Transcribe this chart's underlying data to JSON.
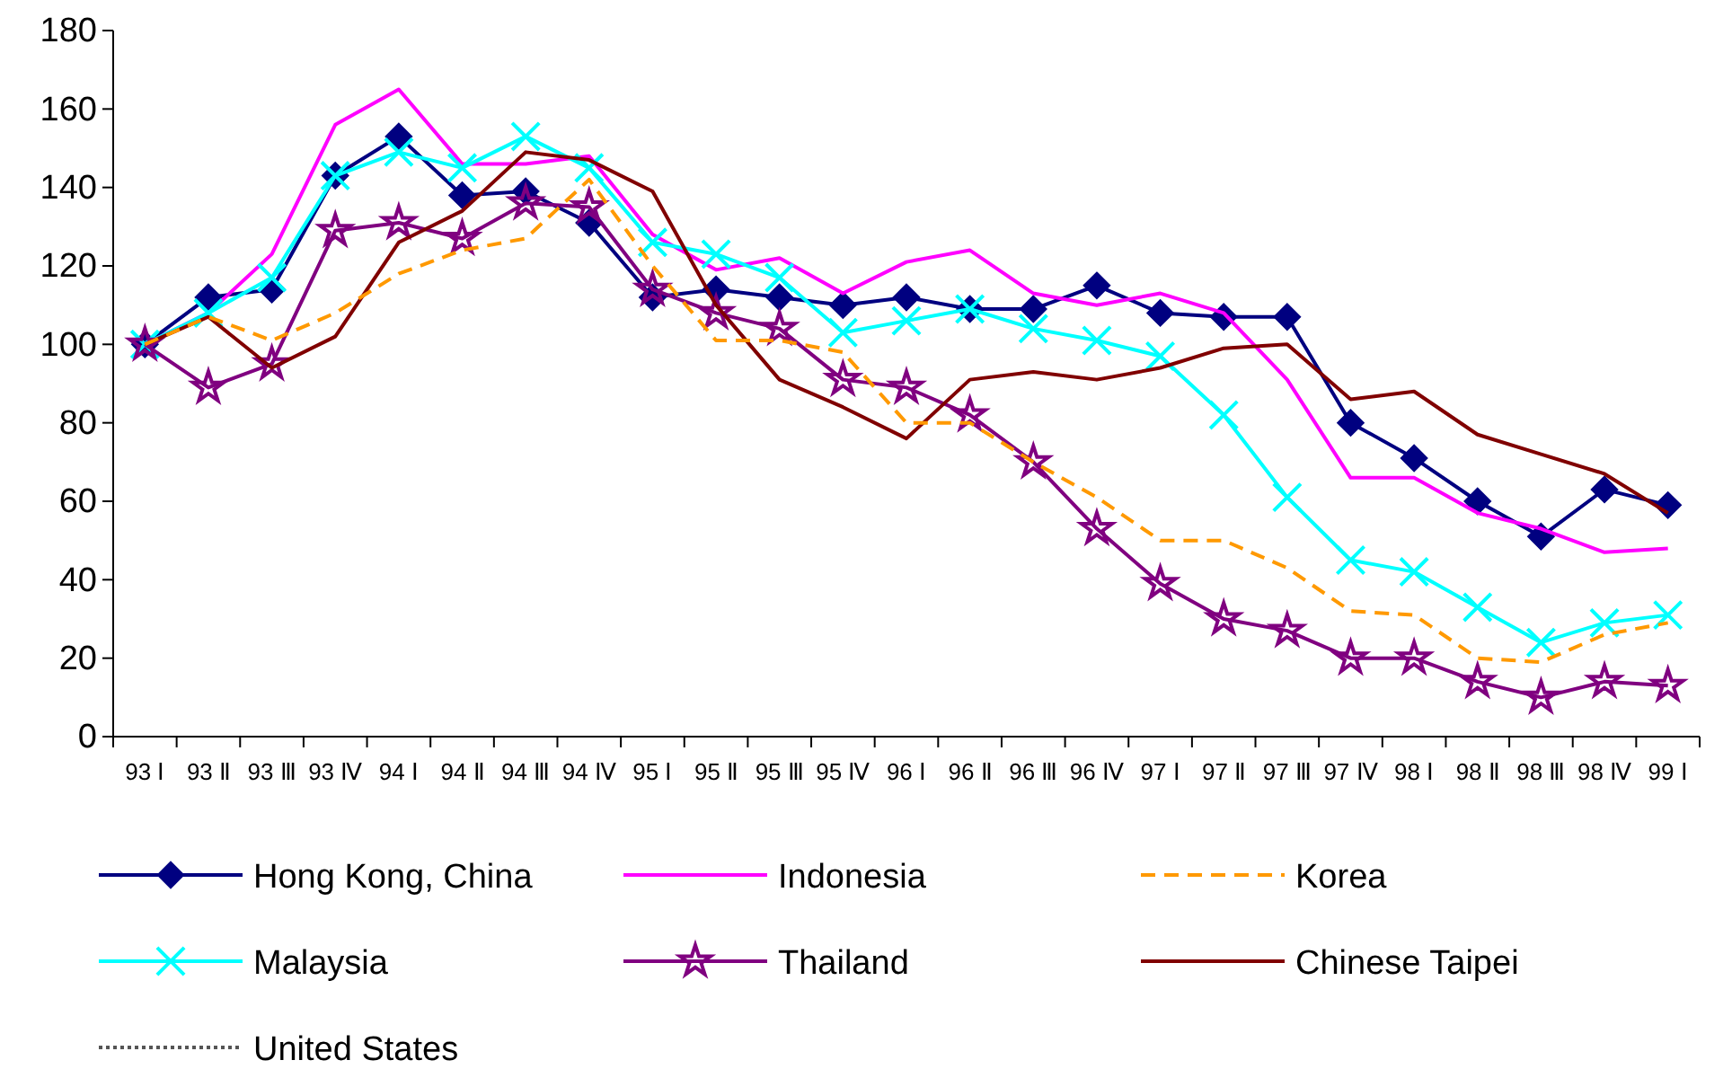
{
  "chart_data": {
    "type": "line",
    "categories": [
      "93 Ⅰ",
      "93 Ⅱ",
      "93 Ⅲ",
      "93 Ⅳ",
      "94 Ⅰ",
      "94 Ⅱ",
      "94 Ⅲ",
      "94 Ⅳ",
      "95 Ⅰ",
      "95 Ⅱ",
      "95 Ⅲ",
      "95 Ⅳ",
      "96 Ⅰ",
      "96 Ⅱ",
      "96 Ⅲ",
      "96 Ⅳ",
      "97 Ⅰ",
      "97 Ⅱ",
      "97 Ⅲ",
      "97 Ⅳ",
      "98 Ⅰ",
      "98 Ⅱ",
      "98 Ⅲ",
      "98 Ⅳ",
      "99 Ⅰ"
    ],
    "series": [
      {
        "name": "Hong Kong, China",
        "color": "#000080",
        "marker": "diamond",
        "line_style": "solid",
        "values": [
          100,
          112,
          114,
          143,
          153,
          138,
          139,
          131,
          112,
          114,
          112,
          110,
          112,
          109,
          109,
          115,
          108,
          107,
          107,
          80,
          71,
          60,
          51,
          63,
          59
        ]
      },
      {
        "name": "Indonesia",
        "color": "#ff00ff",
        "marker": "none",
        "line_style": "solid",
        "values": [
          100,
          108,
          123,
          156,
          165,
          146,
          146,
          148,
          128,
          119,
          122,
          113,
          121,
          124,
          113,
          110,
          113,
          108,
          91,
          66,
          66,
          57,
          53,
          47,
          48
        ]
      },
      {
        "name": "Korea",
        "color": "#ff9900",
        "marker": "none",
        "line_style": "dashed",
        "values": [
          100,
          107,
          101,
          108,
          118,
          124,
          127,
          142,
          120,
          101,
          101,
          98,
          80,
          80,
          70,
          61,
          50,
          50,
          43,
          32,
          31,
          20,
          19,
          26,
          29
        ]
      },
      {
        "name": "Malaysia",
        "color": "#00ffff",
        "marker": "cross",
        "line_style": "solid",
        "values": [
          100,
          108,
          117,
          143,
          149,
          145,
          153,
          145,
          126,
          123,
          117,
          103,
          106,
          109,
          104,
          101,
          97,
          82,
          61,
          45,
          42,
          33,
          24,
          29,
          31
        ]
      },
      {
        "name": "Thailand",
        "color": "#800080",
        "marker": "star",
        "line_style": "solid",
        "values": [
          100,
          89,
          95,
          129,
          131,
          127,
          136,
          135,
          114,
          108,
          104,
          91,
          89,
          82,
          70,
          53,
          39,
          30,
          27,
          20,
          20,
          14,
          10,
          14,
          13
        ]
      },
      {
        "name": "Chinese Taipei",
        "color": "#800000",
        "marker": "none",
        "line_style": "solid",
        "values": [
          100,
          107,
          94,
          102,
          126,
          134,
          149,
          147,
          139,
          110,
          91,
          84,
          76,
          91,
          93,
          91,
          94,
          99,
          100,
          86,
          88,
          77,
          72,
          67,
          57
        ]
      },
      {
        "name": "United States",
        "color": "#555555",
        "marker": "none",
        "line_style": "dotted",
        "values": [
          null,
          null,
          null,
          null,
          null,
          null,
          null,
          null,
          null,
          null,
          null,
          null,
          null,
          null,
          null,
          null,
          null,
          null,
          null,
          null,
          null,
          null,
          null,
          null,
          null
        ]
      }
    ],
    "ylim": [
      0,
      180
    ],
    "yticks": [
      0,
      20,
      40,
      60,
      80,
      100,
      120,
      140,
      160,
      180
    ],
    "grid": false,
    "legend": "bottom"
  }
}
